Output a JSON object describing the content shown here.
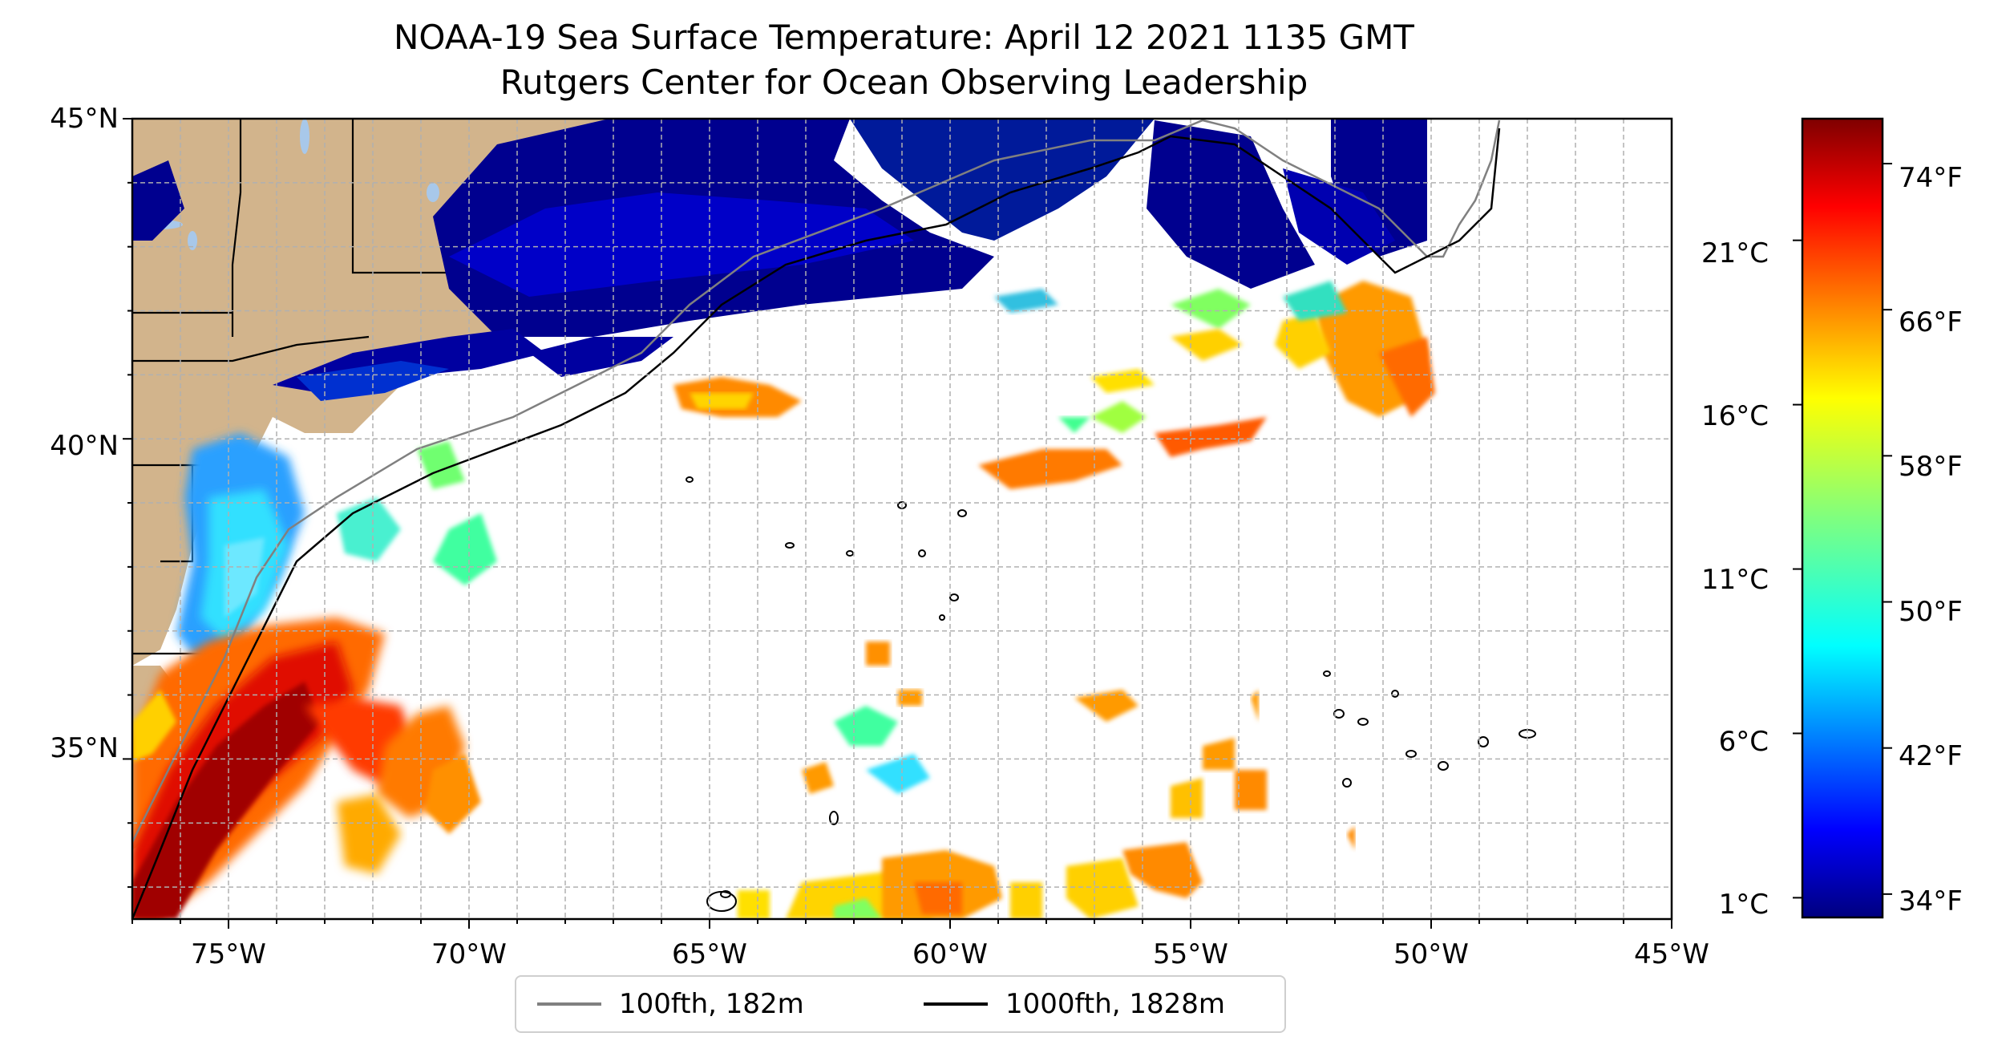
{
  "title": {
    "line1": "NOAA-19 Sea Surface Temperature: April 12 2021 1135 GMT",
    "line2": "Rutgers Center for Ocean Observing Leadership"
  },
  "map": {
    "lon_range": [
      -77,
      -45
    ],
    "lat_range": [
      32.5,
      45
    ],
    "lat_ticks": [
      {
        "value": 45,
        "label": "45°N"
      },
      {
        "value": 40,
        "label": "40°N"
      },
      {
        "value": 35,
        "label": "35°N"
      }
    ],
    "lon_ticks": [
      {
        "value": -75,
        "label": "75°W"
      },
      {
        "value": -70,
        "label": "70°W"
      },
      {
        "value": -65,
        "label": "65°W"
      },
      {
        "value": -60,
        "label": "60°W"
      },
      {
        "value": -55,
        "label": "55°W"
      },
      {
        "value": -50,
        "label": "50°W"
      },
      {
        "value": -45,
        "label": "45°W"
      }
    ],
    "grid": true,
    "colors": {
      "land": "#d2b48c",
      "lakes": "#a8c8ea",
      "isobath_100": "#808080",
      "isobath_1000": "#000000"
    }
  },
  "colorbar": {
    "colormap": "jet",
    "celsius_ticks": [
      {
        "value": 21,
        "label": "21°C"
      },
      {
        "value": 16,
        "label": "16°C"
      },
      {
        "value": 11,
        "label": "11°C"
      },
      {
        "value": 6,
        "label": "6°C"
      },
      {
        "value": 1,
        "label": "1°C"
      }
    ],
    "fahrenheit_ticks": [
      {
        "value": 74,
        "label": "74°F"
      },
      {
        "value": 66,
        "label": "66°F"
      },
      {
        "value": 58,
        "label": "58°F"
      },
      {
        "value": 50,
        "label": "50°F"
      },
      {
        "value": 42,
        "label": "42°F"
      },
      {
        "value": 34,
        "label": "34°F"
      }
    ]
  },
  "legend": {
    "items": [
      {
        "label": "100fth, 182m",
        "color": "#808080"
      },
      {
        "label": "1000fth, 1828m",
        "color": "#000000"
      }
    ]
  }
}
